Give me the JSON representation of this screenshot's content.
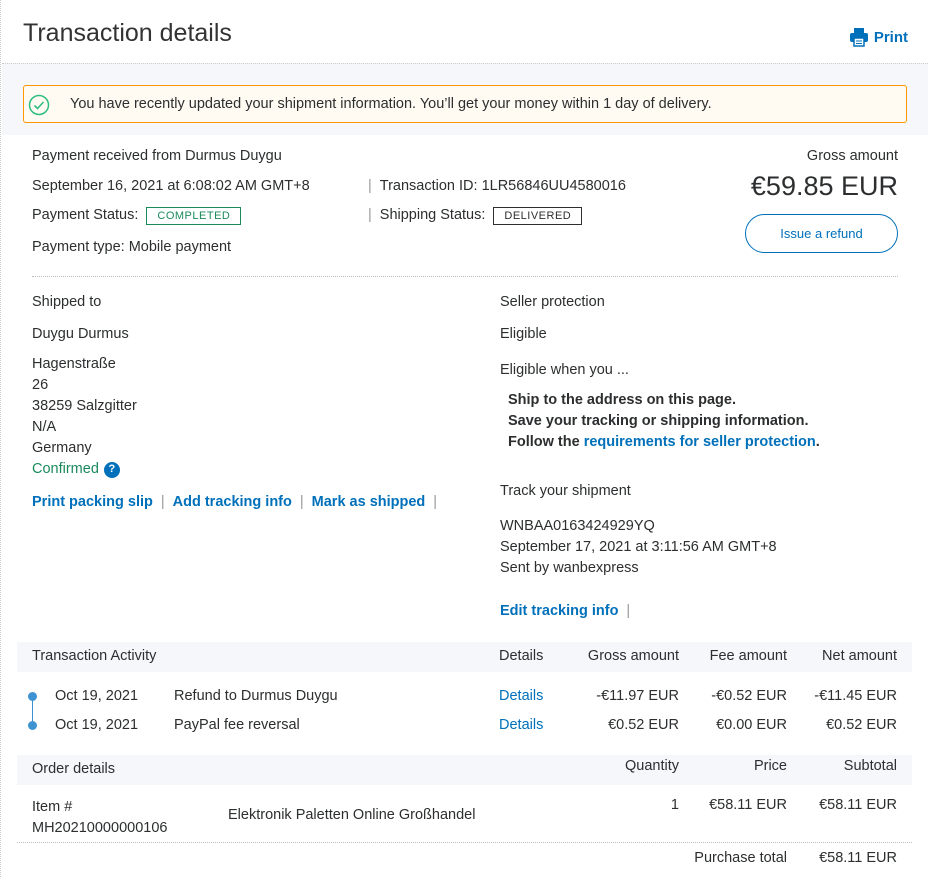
{
  "header": {
    "title": "Transaction details",
    "print_label": "Print"
  },
  "alert": {
    "message": "You have recently updated your shipment information. You’ll get your money within 1 day of delivery."
  },
  "summary": {
    "payment_from": "Payment received from Durmus Duygu",
    "date": "September 16, 2021 at 6:08:02 AM GMT+8",
    "transaction_id": "Transaction ID: 1LR56846UU4580016",
    "payment_status_label": "Payment Status:",
    "payment_status": "COMPLETED",
    "shipping_status_label": "Shipping Status:",
    "shipping_status": "DELIVERED",
    "payment_type": "Payment type: Mobile payment",
    "gross_label": "Gross amount",
    "gross_amount": "€59.85 EUR",
    "refund_button": "Issue a refund"
  },
  "shipping": {
    "heading": "Shipped to",
    "name": "Duygu Durmus",
    "address": [
      "Hagenstraße",
      "26",
      "38259 Salzgitter",
      "N/A",
      "Germany"
    ],
    "confirmed": "Confirmed",
    "links": [
      "Print packing slip",
      "Add tracking info",
      "Mark as shipped"
    ]
  },
  "protection": {
    "heading": "Seller protection",
    "status": "Eligible",
    "intro": "Eligible when you ...",
    "items": [
      "Ship to the address on this page.",
      "Save your tracking or shipping information."
    ],
    "follow_prefix": "Follow the ",
    "follow_link": "requirements for seller protection",
    "follow_suffix": "."
  },
  "tracking": {
    "heading": "Track your shipment",
    "number": "WNBAA0163424929YQ",
    "date": "September 17, 2021 at 3:11:56 AM GMT+8",
    "sent_by": "Sent by wanbexpress",
    "edit_link": "Edit tracking info"
  },
  "activity": {
    "headers": [
      "Transaction Activity",
      "Details",
      "Gross amount",
      "Fee amount",
      "Net amount"
    ],
    "rows": [
      {
        "date": "Oct 19, 2021",
        "desc": "Refund to Durmus Duygu",
        "details": "Details",
        "gross": "-€11.97 EUR",
        "fee": "-€0.52 EUR",
        "net": "-€11.45 EUR"
      },
      {
        "date": "Oct 19, 2021",
        "desc": "PayPal fee reversal",
        "details": "Details",
        "gross": "€0.52 EUR",
        "fee": "€0.00 EUR",
        "net": "€0.52 EUR"
      }
    ]
  },
  "order": {
    "headers": [
      "Order details",
      "Quantity",
      "Price",
      "Subtotal"
    ],
    "item_label": "Item #",
    "item_number": "MH20210000000106",
    "item_name": "Elektronik Paletten Online Großhandel",
    "quantity": "1",
    "price": "€58.11 EUR",
    "subtotal": "€58.11 EUR",
    "total_label": "Purchase total",
    "total": "€58.11 EUR"
  },
  "colors": {
    "link": "#0070ba",
    "alert_border": "#ff9600",
    "success": "#1b8a5a"
  }
}
